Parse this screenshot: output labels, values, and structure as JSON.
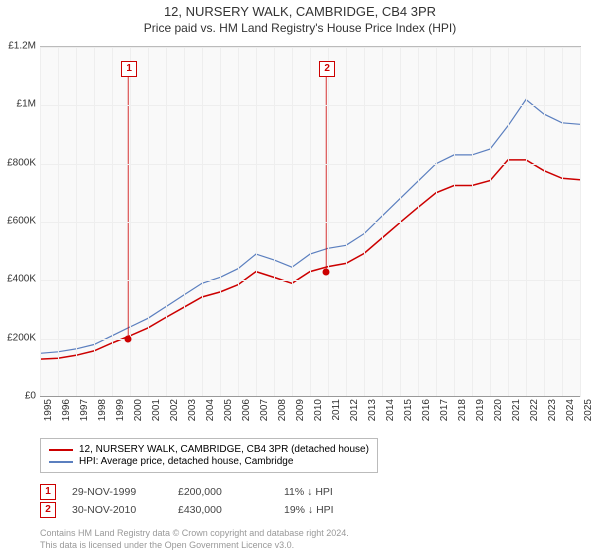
{
  "title": "12, NURSERY WALK, CAMBRIDGE, CB4 3PR",
  "subtitle": "Price paid vs. HM Land Registry's House Price Index (HPI)",
  "chart": {
    "type": "line",
    "background_color": "#f9f9f9",
    "grid_color": "#eeeeee",
    "axis_color": "#999999",
    "ylim": [
      0,
      1200000
    ],
    "ytick_step": 200000,
    "y_labels": [
      "£0",
      "£200K",
      "£400K",
      "£600K",
      "£800K",
      "£1M",
      "£1.2M"
    ],
    "xlim": [
      1995,
      2025
    ],
    "x_labels": [
      "1995",
      "1996",
      "1997",
      "1998",
      "1999",
      "2000",
      "2001",
      "2002",
      "2003",
      "2004",
      "2005",
      "2006",
      "2007",
      "2008",
      "2009",
      "2010",
      "2011",
      "2012",
      "2013",
      "2014",
      "2015",
      "2016",
      "2017",
      "2018",
      "2019",
      "2020",
      "2021",
      "2022",
      "2023",
      "2024",
      "2025"
    ],
    "series": [
      {
        "name": "HPI: Average price, detached house, Cambridge",
        "color": "#5b7fbf",
        "width": 1.2,
        "points": [
          [
            1995,
            150000
          ],
          [
            1996,
            155000
          ],
          [
            1997,
            165000
          ],
          [
            1998,
            180000
          ],
          [
            1999,
            210000
          ],
          [
            2000,
            240000
          ],
          [
            2001,
            270000
          ],
          [
            2002,
            310000
          ],
          [
            2003,
            350000
          ],
          [
            2004,
            390000
          ],
          [
            2005,
            410000
          ],
          [
            2006,
            440000
          ],
          [
            2007,
            490000
          ],
          [
            2008,
            470000
          ],
          [
            2009,
            445000
          ],
          [
            2010,
            490000
          ],
          [
            2011,
            510000
          ],
          [
            2012,
            520000
          ],
          [
            2013,
            560000
          ],
          [
            2014,
            620000
          ],
          [
            2015,
            680000
          ],
          [
            2016,
            740000
          ],
          [
            2017,
            800000
          ],
          [
            2018,
            830000
          ],
          [
            2019,
            830000
          ],
          [
            2020,
            850000
          ],
          [
            2021,
            930000
          ],
          [
            2022,
            1020000
          ],
          [
            2023,
            970000
          ],
          [
            2024,
            940000
          ],
          [
            2025,
            935000
          ]
        ]
      },
      {
        "name": "12, NURSERY WALK, CAMBRIDGE, CB4 3PR (detached house)",
        "color": "#cc0000",
        "width": 1.5,
        "points": [
          [
            1995,
            130000
          ],
          [
            1996,
            133000
          ],
          [
            1997,
            143000
          ],
          [
            1998,
            158000
          ],
          [
            1999,
            185000
          ],
          [
            2000,
            210000
          ],
          [
            2001,
            237000
          ],
          [
            2002,
            273000
          ],
          [
            2003,
            308000
          ],
          [
            2004,
            343000
          ],
          [
            2005,
            360000
          ],
          [
            2006,
            385000
          ],
          [
            2007,
            430000
          ],
          [
            2008,
            410000
          ],
          [
            2009,
            390000
          ],
          [
            2010,
            430000
          ],
          [
            2011,
            447000
          ],
          [
            2012,
            458000
          ],
          [
            2013,
            492000
          ],
          [
            2014,
            545000
          ],
          [
            2015,
            598000
          ],
          [
            2016,
            650000
          ],
          [
            2017,
            700000
          ],
          [
            2018,
            725000
          ],
          [
            2019,
            725000
          ],
          [
            2020,
            742000
          ],
          [
            2021,
            813000
          ],
          [
            2022,
            813000
          ],
          [
            2023,
            776000
          ],
          [
            2024,
            750000
          ],
          [
            2025,
            745000
          ]
        ]
      }
    ],
    "markers": [
      {
        "num": "1",
        "x": 1999.9,
        "price": 200000,
        "box_top": 14
      },
      {
        "num": "2",
        "x": 2010.9,
        "price": 430000,
        "box_top": 14
      }
    ]
  },
  "legend": {
    "items": [
      {
        "color": "#cc0000",
        "label": "12, NURSERY WALK, CAMBRIDGE, CB4 3PR (detached house)"
      },
      {
        "color": "#5b7fbf",
        "label": "HPI: Average price, detached house, Cambridge"
      }
    ]
  },
  "transactions": [
    {
      "num": "1",
      "date": "29-NOV-1999",
      "price": "£200,000",
      "delta": "11% ↓ HPI"
    },
    {
      "num": "2",
      "date": "30-NOV-2010",
      "price": "£430,000",
      "delta": "19% ↓ HPI"
    }
  ],
  "attribution": {
    "line1": "Contains HM Land Registry data © Crown copyright and database right 2024.",
    "line2": "This data is licensed under the Open Government Licence v3.0."
  }
}
